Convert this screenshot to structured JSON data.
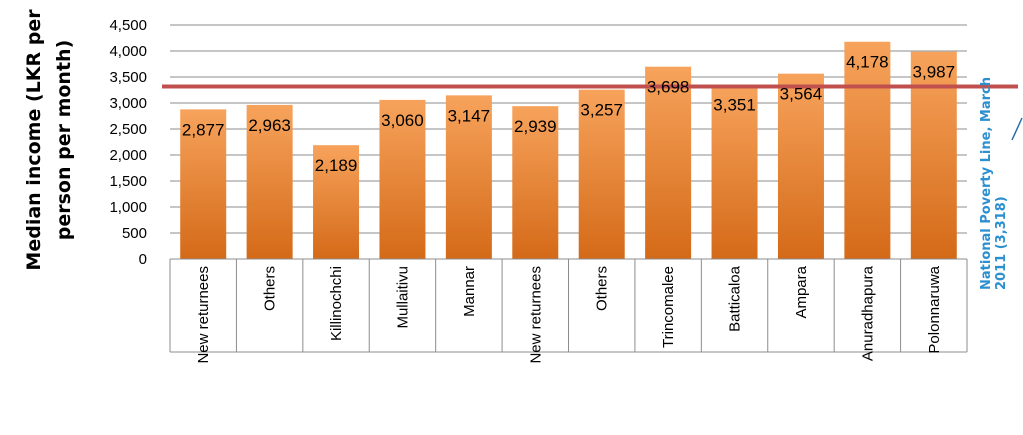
{
  "chart_data": {
    "type": "bar",
    "ylabel_lines": [
      "Median income (LKR per",
      "person per month)"
    ],
    "categories": [
      "New returnees",
      "Others",
      "Killinochchi",
      "Mullaitivu",
      "Mannar",
      "New returnees",
      "Others",
      "Trincomalee",
      "Batticaloa",
      "Ampara",
      "Anuradhapura",
      "Polonnaruwa"
    ],
    "values": [
      2877,
      2963,
      2189,
      3060,
      3147,
      2939,
      3257,
      3698,
      3351,
      3564,
      4178,
      3987
    ],
    "value_labels": [
      "2,877",
      "2,963",
      "2,189",
      "3,060",
      "3,147",
      "2,939",
      "3,257",
      "3,698",
      "3,351",
      "3,564",
      "4,178",
      "3,987"
    ],
    "ylim": [
      0,
      4500
    ],
    "yticks": [
      0,
      500,
      1000,
      1500,
      2000,
      2500,
      3000,
      3500,
      4000,
      4500
    ],
    "ytick_labels": [
      "0",
      "500",
      "1,000",
      "1,500",
      "2,000",
      "2,500",
      "3,000",
      "3,500",
      "4,000",
      "4,500"
    ],
    "gridlines": true,
    "reference_line": {
      "value": 3318,
      "color": "#c0504d",
      "annotation_lines": [
        "National Poverty Line, March",
        "2011 (3,318)"
      ],
      "annotation_color": "#2b8fd0"
    },
    "bar_color_top": "#f7a35c",
    "bar_color_bottom": "#d46a18"
  }
}
